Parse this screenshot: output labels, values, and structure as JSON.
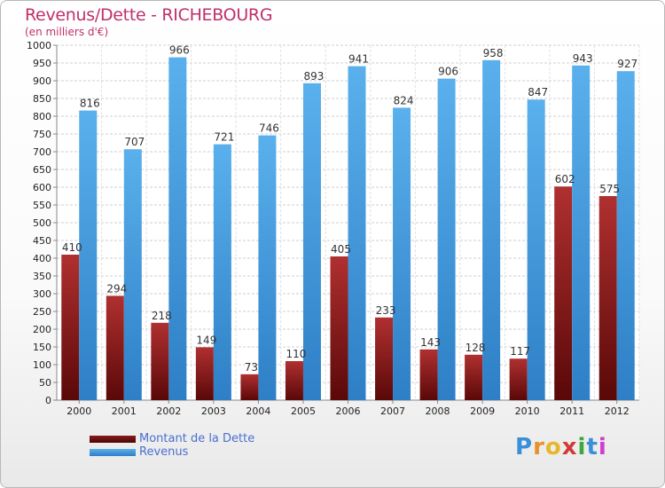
{
  "header": {
    "title": "Revenus/Dette - RICHEBOURG",
    "subtitle": "(en milliers d'€)"
  },
  "chart_data": {
    "type": "bar",
    "title": "Revenus/Dette - RICHEBOURG",
    "ylabel": "(en milliers d'€)",
    "xlabel": "",
    "categories": [
      "2000",
      "2001",
      "2002",
      "2003",
      "2004",
      "2005",
      "2006",
      "2007",
      "2008",
      "2009",
      "2010",
      "2011",
      "2012"
    ],
    "series": [
      {
        "name": "Montant de la Dette",
        "color": "#7a1a1a",
        "values": [
          410,
          294,
          218,
          149,
          73,
          110,
          405,
          233,
          143,
          128,
          117,
          602,
          575
        ]
      },
      {
        "name": "Revenus",
        "color": "#4da3e3",
        "values": [
          816,
          707,
          966,
          721,
          746,
          893,
          941,
          824,
          906,
          958,
          847,
          943,
          927
        ]
      }
    ],
    "ylim": [
      0,
      1000
    ],
    "ytick_step": 50,
    "grid": true,
    "legend_position": "bottom-left"
  },
  "legend": {
    "debt_label": "Montant de la Dette",
    "revenue_label": "Revenus"
  },
  "logo": {
    "letters": [
      "P",
      "r",
      "o",
      "x",
      "i",
      "t",
      "i"
    ],
    "colors": [
      "#3a8fd8",
      "#e8902a",
      "#e8b62a",
      "#d23a3a",
      "#3aa83a",
      "#3a8fd8",
      "#d23ad2"
    ]
  }
}
